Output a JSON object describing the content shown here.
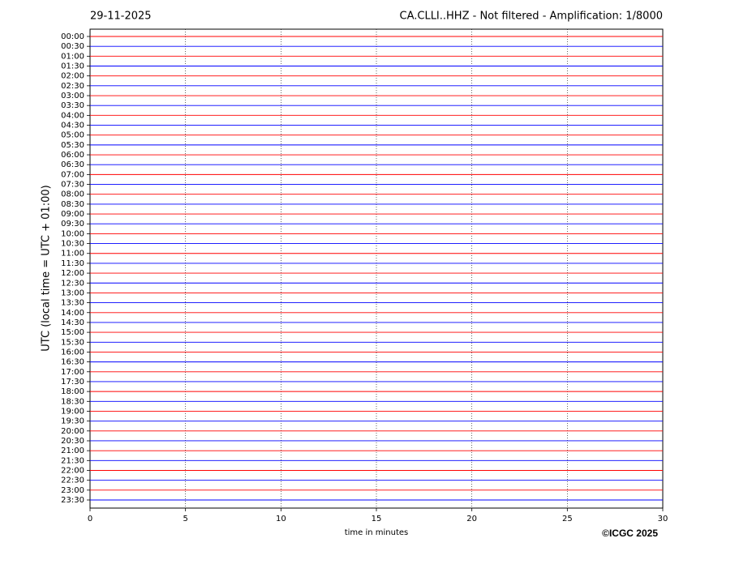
{
  "chart_data": {
    "type": "helicorder",
    "date": "29-11-2025",
    "title": "CA.CLLI..HHZ - Not filtered - Amplification: 1/8000",
    "y_label": "UTC (local time = UTC + 01:00)",
    "x_label": "time in minutes",
    "credit": "©ICGC 2025",
    "categories": [
      "00:00",
      "00:30",
      "01:00",
      "01:30",
      "02:00",
      "02:30",
      "03:00",
      "03:30",
      "04:00",
      "04:30",
      "05:00",
      "05:30",
      "06:00",
      "06:30",
      "07:00",
      "07:30",
      "08:00",
      "08:30",
      "09:00",
      "09:30",
      "10:00",
      "10:30",
      "11:00",
      "11:30",
      "12:00",
      "12:30",
      "13:00",
      "13:30",
      "14:00",
      "14:30",
      "15:00",
      "15:30",
      "16:00",
      "16:30",
      "17:00",
      "17:30",
      "18:00",
      "18:30",
      "19:00",
      "19:30",
      "20:00",
      "20:30",
      "21:00",
      "21:30",
      "22:00",
      "22:30",
      "23:00",
      "23:30"
    ],
    "colors": [
      "#ff0000",
      "#0000ff"
    ],
    "xlim": [
      0,
      30
    ],
    "xticks": [
      0,
      5,
      10,
      15,
      20,
      25,
      30
    ],
    "grid": true
  }
}
